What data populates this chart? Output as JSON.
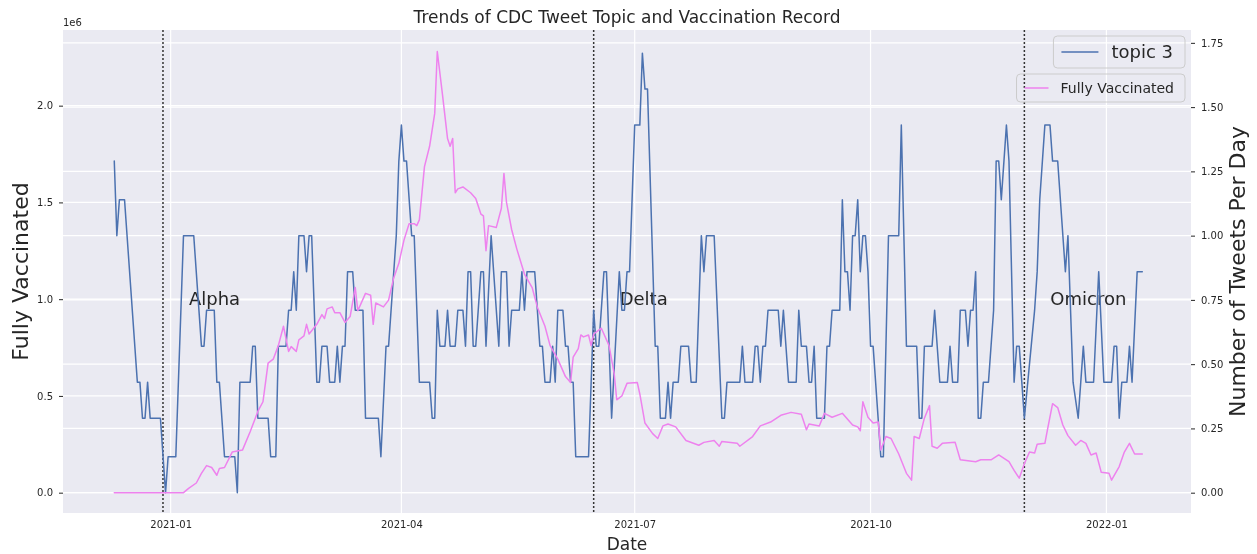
{
  "chart_data": {
    "type": "line",
    "title": "Trends of CDC Tweet Topic and Vaccination Record",
    "xlabel": "Date",
    "ylabel": "Fully Vaccinated",
    "y2label": "Number of Tweets Per Day",
    "xlim": [
      "2020-11-20",
      "2022-02-03"
    ],
    "xticks": [
      "2021-01",
      "2021-04",
      "2021-07",
      "2021-10",
      "2022-01"
    ],
    "ylim": [
      -0.105,
      2.391
    ],
    "yticks": [
      {
        "value": 0,
        "label": "0.0"
      },
      0.5,
      {
        "value": 1,
        "label": "1.0"
      },
      1.5,
      {
        "value": 2,
        "label": "2.0"
      }
    ],
    "y2lim": [
      -0.079,
      1.8
    ],
    "y2ticks": [
      {
        "value": 0,
        "label": "0.00"
      },
      {
        "value": 0.25,
        "label": "0.25"
      },
      {
        "value": 0.5,
        "label": "0.50"
      },
      {
        "value": 0.75,
        "label": "0.75"
      },
      {
        "value": 1,
        "label": "1.00"
      },
      {
        "value": 1.25,
        "label": "1.25"
      },
      {
        "value": 1.5,
        "label": "1.50"
      },
      {
        "value": 1.75,
        "label": "1.75"
      }
    ],
    "grid": true,
    "legend": "top right",
    "line_style": "solid",
    "marker": "none",
    "annotations": [
      "1e6"
    ],
    "ref_lines": [
      {
        "axis": "x",
        "value": "2020-12-29",
        "label": "Alpha",
        "color": "#333333",
        "line_style": "dotted"
      },
      {
        "axis": "x",
        "value": "2021-06-15",
        "label": "Delta",
        "color": "#333333",
        "line_style": "dotted"
      },
      {
        "axis": "x",
        "value": "2021-11-30",
        "label": "Omicron",
        "color": "#333333",
        "line_style": "dotted"
      }
    ],
    "series": [
      {
        "name": "topic 3",
        "color": "#4c72b0",
        "axis": "y2",
        "x": [
          "2020-12-10",
          "2020-12-11",
          "2020-12-12",
          "2020-12-14",
          "2020-12-19",
          "2020-12-20",
          "2020-12-21",
          "2020-12-22",
          "2020-12-23",
          "2020-12-24",
          "2020-12-28",
          "2020-12-30",
          "2020-12-31",
          "2021-01-03",
          "2021-01-06",
          "2021-01-10",
          "2021-01-13",
          "2021-01-14",
          "2021-01-15",
          "2021-01-18",
          "2021-01-19",
          "2021-01-20",
          "2021-01-22",
          "2021-01-26",
          "2021-01-27",
          "2021-01-28",
          "2021-02-01",
          "2021-02-02",
          "2021-02-03",
          "2021-02-04",
          "2021-02-08",
          "2021-02-09",
          "2021-02-11",
          "2021-02-12",
          "2021-02-15",
          "2021-02-16",
          "2021-02-17",
          "2021-02-18",
          "2021-02-19",
          "2021-02-20",
          "2021-02-22",
          "2021-02-23",
          "2021-02-24",
          "2021-02-25",
          "2021-02-27",
          "2021-02-28",
          "2021-03-01",
          "2021-03-03",
          "2021-03-04",
          "2021-03-06",
          "2021-03-07",
          "2021-03-08",
          "2021-03-09",
          "2021-03-10",
          "2021-03-11",
          "2021-03-13",
          "2021-03-14",
          "2021-03-17",
          "2021-03-18",
          "2021-03-23",
          "2021-03-24",
          "2021-03-26",
          "2021-03-27",
          "2021-03-30",
          "2021-03-31",
          "2021-04-01",
          "2021-04-02",
          "2021-04-03",
          "2021-04-05",
          "2021-04-06",
          "2021-04-08",
          "2021-04-12",
          "2021-04-13",
          "2021-04-14",
          "2021-04-15",
          "2021-04-16",
          "2021-04-18",
          "2021-04-19",
          "2021-04-20",
          "2021-04-22",
          "2021-04-23",
          "2021-04-25",
          "2021-04-26",
          "2021-04-27",
          "2021-04-28",
          "2021-04-29",
          "2021-04-30",
          "2021-05-02",
          "2021-05-03",
          "2021-05-04",
          "2021-05-06",
          "2021-05-09",
          "2021-05-10",
          "2021-05-12",
          "2021-05-13",
          "2021-05-14",
          "2021-05-17",
          "2021-05-18",
          "2021-05-19",
          "2021-05-20",
          "2021-05-23",
          "2021-05-25",
          "2021-05-26",
          "2021-05-27",
          "2021-05-29",
          "2021-05-30",
          "2021-05-31",
          "2021-06-01",
          "2021-06-03",
          "2021-06-04",
          "2021-06-05",
          "2021-06-06",
          "2021-06-07",
          "2021-06-08",
          "2021-06-13",
          "2021-06-15",
          "2021-06-16",
          "2021-06-17",
          "2021-06-19",
          "2021-06-20",
          "2021-06-22",
          "2021-06-25",
          "2021-06-26",
          "2021-06-27",
          "2021-06-28",
          "2021-06-29",
          "2021-07-01",
          "2021-07-03",
          "2021-07-04",
          "2021-07-05",
          "2021-07-06",
          "2021-07-09",
          "2021-07-10",
          "2021-07-11",
          "2021-07-13",
          "2021-07-14",
          "2021-07-15",
          "2021-07-16",
          "2021-07-18",
          "2021-07-19",
          "2021-07-22",
          "2021-07-23",
          "2021-07-25",
          "2021-07-27",
          "2021-07-28",
          "2021-07-29",
          "2021-08-01",
          "2021-08-04",
          "2021-08-05",
          "2021-08-06",
          "2021-08-11",
          "2021-08-12",
          "2021-08-13",
          "2021-08-16",
          "2021-08-17",
          "2021-08-18",
          "2021-08-19",
          "2021-08-20",
          "2021-08-21",
          "2021-08-22",
          "2021-08-26",
          "2021-08-27",
          "2021-08-28",
          "2021-08-30",
          "2021-09-02",
          "2021-09-03",
          "2021-09-04",
          "2021-09-06",
          "2021-09-07",
          "2021-09-08",
          "2021-09-09",
          "2021-09-10",
          "2021-09-13",
          "2021-09-14",
          "2021-09-15",
          "2021-09-16",
          "2021-09-19",
          "2021-09-20",
          "2021-09-21",
          "2021-09-22",
          "2021-09-23",
          "2021-09-24",
          "2021-09-25",
          "2021-09-26",
          "2021-09-27",
          "2021-09-28",
          "2021-09-29",
          "2021-09-30",
          "2021-10-01",
          "2021-10-02",
          "2021-10-05",
          "2021-10-06",
          "2021-10-08",
          "2021-10-12",
          "2021-10-13",
          "2021-10-15",
          "2021-10-19",
          "2021-10-20",
          "2021-10-21",
          "2021-10-22",
          "2021-10-25",
          "2021-10-26",
          "2021-10-28",
          "2021-10-31",
          "2021-11-01",
          "2021-11-02",
          "2021-11-04",
          "2021-11-05",
          "2021-11-07",
          "2021-11-08",
          "2021-11-09",
          "2021-11-10",
          "2021-11-11",
          "2021-11-12",
          "2021-11-13",
          "2021-11-14",
          "2021-11-16",
          "2021-11-18",
          "2021-11-19",
          "2021-11-20",
          "2021-11-21",
          "2021-11-23",
          "2021-11-24",
          "2021-11-26",
          "2021-11-27",
          "2021-11-28",
          "2021-11-30",
          "2021-12-04",
          "2021-12-05",
          "2021-12-06",
          "2021-12-08",
          "2021-12-10",
          "2021-12-11",
          "2021-12-13",
          "2021-12-16",
          "2021-12-17",
          "2021-12-19",
          "2021-12-21",
          "2021-12-23",
          "2021-12-24",
          "2021-12-27",
          "2021-12-29",
          "2021-12-31",
          "2022-01-03",
          "2022-01-04",
          "2022-01-05",
          "2022-01-06",
          "2022-01-07",
          "2022-01-09",
          "2022-01-10",
          "2022-01-11",
          "2022-01-13",
          "2022-01-15"
        ],
        "values": [
          1.29,
          1.0,
          1.14,
          1.14,
          0.43,
          0.43,
          0.29,
          0.29,
          0.43,
          0.29,
          0.29,
          0,
          0.14,
          0.14,
          1.0,
          1.0,
          0.57,
          0.57,
          0.71,
          0.71,
          0.43,
          0.43,
          0.14,
          0.14,
          0,
          0.43,
          0.43,
          0.57,
          0.57,
          0.29,
          0.29,
          0.14,
          0.14,
          0.57,
          0.57,
          0.71,
          0.71,
          0.86,
          0.71,
          1.0,
          1.0,
          0.86,
          1.0,
          1.0,
          0.43,
          0.43,
          0.57,
          0.57,
          0.43,
          0.43,
          0.57,
          0.43,
          0.57,
          0.57,
          0.86,
          0.86,
          0.71,
          0.71,
          0.29,
          0.29,
          0.14,
          0.57,
          0.57,
          1.0,
          1.29,
          1.43,
          1.29,
          1.29,
          1.0,
          1.0,
          0.43,
          0.43,
          0.29,
          0.29,
          0.71,
          0.57,
          0.57,
          0.71,
          0.57,
          0.57,
          0.71,
          0.71,
          0.57,
          0.86,
          0.86,
          0.57,
          0.57,
          0.86,
          0.86,
          0.57,
          1.0,
          0.57,
          0.86,
          0.86,
          0.57,
          0.71,
          0.71,
          0.86,
          0.71,
          0.86,
          0.86,
          0.57,
          0.57,
          0.43,
          0.43,
          0.57,
          0.43,
          0.71,
          0.71,
          0.57,
          0.57,
          0.43,
          0.43,
          0.14,
          0.14,
          0.71,
          0.57,
          0.57,
          0.86,
          0.86,
          0.29,
          0.86,
          0.71,
          0.71,
          0.86,
          0.86,
          1.43,
          1.43,
          1.71,
          1.57,
          1.57,
          0.57,
          0.57,
          0.29,
          0.29,
          0.43,
          0.29,
          0.43,
          0.43,
          0.57,
          0.57,
          0.43,
          0.43,
          1.0,
          0.86,
          1.0,
          1.0,
          0.29,
          0.29,
          0.43,
          0.43,
          0.57,
          0.43,
          0.43,
          0.57,
          0.57,
          0.43,
          0.57,
          0.57,
          0.71,
          0.71,
          0.57,
          0.71,
          0.43,
          0.43,
          0.71,
          0.57,
          0.57,
          0.43,
          0.43,
          0.57,
          0.29,
          0.29,
          0.57,
          0.57,
          0.71,
          0.71,
          1.14,
          0.86,
          0.86,
          0.71,
          1.0,
          1.0,
          1.14,
          0.86,
          1.0,
          1.0,
          0.86,
          0.57,
          0.57,
          0.14,
          0.14,
          1.0,
          1.0,
          1.43,
          0.57,
          0.57,
          0.29,
          0.29,
          0.57,
          0.57,
          0.71,
          0.43,
          0.43,
          0.57,
          0.43,
          0.43,
          0.71,
          0.71,
          0.57,
          0.71,
          0.71,
          0.86,
          0.29,
          0.29,
          0.43,
          0.43,
          0.71,
          1.29,
          1.29,
          1.14,
          1.43,
          1.29,
          0.43,
          0.57,
          0.57,
          0.29,
          0.71,
          0.86,
          1.14,
          1.43,
          1.43,
          1.29,
          1.29,
          0.86,
          1.0,
          0.43,
          0.29,
          0.57,
          0.43,
          0.43,
          0.86,
          0.43,
          0.43,
          0.57,
          0.57,
          0.29,
          0.43,
          0.43,
          0.57,
          0.43,
          0.86,
          0.86
        ]
      },
      {
        "name": "Fully Vaccinated",
        "color": "#ee82ee",
        "axis": "y",
        "x": [
          "2020-12-10",
          "2021-01-06",
          "2021-01-08",
          "2021-01-11",
          "2021-01-13",
          "2021-01-15",
          "2021-01-17",
          "2021-01-19",
          "2021-01-20",
          "2021-01-22",
          "2021-01-25",
          "2021-01-29",
          "2021-02-01",
          "2021-02-04",
          "2021-02-06",
          "2021-02-08",
          "2021-02-10",
          "2021-02-12",
          "2021-02-14",
          "2021-02-16",
          "2021-02-17",
          "2021-02-19",
          "2021-02-20",
          "2021-02-22",
          "2021-02-23",
          "2021-02-24",
          "2021-02-27",
          "2021-03-01",
          "2021-03-02",
          "2021-03-03",
          "2021-03-05",
          "2021-03-06",
          "2021-03-08",
          "2021-03-10",
          "2021-03-12",
          "2021-03-14",
          "2021-03-15",
          "2021-03-18",
          "2021-03-20",
          "2021-03-21",
          "2021-03-22",
          "2021-03-25",
          "2021-03-27",
          "2021-03-29",
          "2021-03-31",
          "2021-04-02",
          "2021-04-04",
          "2021-04-06",
          "2021-04-07",
          "2021-04-08",
          "2021-04-10",
          "2021-04-12",
          "2021-04-14",
          "2021-04-15",
          "2021-04-17",
          "2021-04-19",
          "2021-04-20",
          "2021-04-21",
          "2021-04-22",
          "2021-04-23",
          "2021-04-25",
          "2021-04-28",
          "2021-04-30",
          "2021-05-02",
          "2021-05-03",
          "2021-05-04",
          "2021-05-05",
          "2021-05-08",
          "2021-05-10",
          "2021-05-11",
          "2021-05-12",
          "2021-05-14",
          "2021-05-16",
          "2021-05-19",
          "2021-05-22",
          "2021-05-24",
          "2021-05-27",
          "2021-05-29",
          "2021-06-01",
          "2021-06-04",
          "2021-06-06",
          "2021-06-07",
          "2021-06-09",
          "2021-06-10",
          "2021-06-11",
          "2021-06-13",
          "2021-06-14",
          "2021-06-15",
          "2021-06-18",
          "2021-06-21",
          "2021-06-23",
          "2021-06-24",
          "2021-06-26",
          "2021-06-28",
          "2021-07-02",
          "2021-07-03",
          "2021-07-05",
          "2021-07-08",
          "2021-07-10",
          "2021-07-12",
          "2021-07-14",
          "2021-07-17",
          "2021-07-21",
          "2021-07-26",
          "2021-07-28",
          "2021-08-01",
          "2021-08-03",
          "2021-08-04",
          "2021-08-10",
          "2021-08-11",
          "2021-08-16",
          "2021-08-19",
          "2021-08-23",
          "2021-08-27",
          "2021-08-31",
          "2021-09-04",
          "2021-09-06",
          "2021-09-07",
          "2021-09-11",
          "2021-09-13",
          "2021-09-16",
          "2021-09-20",
          "2021-09-24",
          "2021-09-26",
          "2021-09-27",
          "2021-09-28",
          "2021-09-30",
          "2021-10-02",
          "2021-10-04",
          "2021-10-05",
          "2021-10-07",
          "2021-10-09",
          "2021-10-12",
          "2021-10-15",
          "2021-10-17",
          "2021-10-18",
          "2021-10-20",
          "2021-10-22",
          "2021-10-24",
          "2021-10-25",
          "2021-10-27",
          "2021-10-29",
          "2021-11-03",
          "2021-11-05",
          "2021-11-11",
          "2021-11-13",
          "2021-11-17",
          "2021-11-20",
          "2021-11-24",
          "2021-11-26",
          "2021-11-28",
          "2021-11-30",
          "2021-12-02",
          "2021-12-04",
          "2021-12-05",
          "2021-12-08",
          "2021-12-09",
          "2021-12-11",
          "2021-12-13",
          "2021-12-15",
          "2021-12-17",
          "2021-12-20",
          "2021-12-22",
          "2021-12-24",
          "2021-12-26",
          "2021-12-28",
          "2021-12-30",
          "2022-01-02",
          "2022-01-03",
          "2022-01-06",
          "2022-01-08",
          "2022-01-10",
          "2022-01-12",
          "2022-01-15"
        ],
        "values": [
          0,
          0,
          0.022,
          0.05,
          0.1,
          0.14,
          0.13,
          0.09,
          0.125,
          0.13,
          0.21,
          0.22,
          0.315,
          0.42,
          0.47,
          0.67,
          0.69,
          0.76,
          0.86,
          0.73,
          0.755,
          0.73,
          0.79,
          0.81,
          0.87,
          0.82,
          0.87,
          0.92,
          0.9,
          0.95,
          0.96,
          0.93,
          0.93,
          0.88,
          0.91,
          1.06,
          0.94,
          1.03,
          1.02,
          0.87,
          0.98,
          0.96,
          0.995,
          1.11,
          1.185,
          1.305,
          1.39,
          1.39,
          1.38,
          1.41,
          1.685,
          1.79,
          1.96,
          2.28,
          2.06,
          1.83,
          1.79,
          1.83,
          1.55,
          1.57,
          1.58,
          1.55,
          1.52,
          1.44,
          1.43,
          1.25,
          1.38,
          1.37,
          1.47,
          1.65,
          1.5,
          1.36,
          1.26,
          1.13,
          1.06,
          0.96,
          0.86,
          0.76,
          0.69,
          0.6,
          0.57,
          0.7,
          0.745,
          0.815,
          0.805,
          0.815,
          0.76,
          0.82,
          0.85,
          0.76,
          0.615,
          0.48,
          0.5,
          0.565,
          0.57,
          0.51,
          0.36,
          0.305,
          0.28,
          0.345,
          0.355,
          0.34,
          0.27,
          0.245,
          0.26,
          0.27,
          0.24,
          0.265,
          0.255,
          0.24,
          0.29,
          0.345,
          0.365,
          0.4,
          0.415,
          0.405,
          0.325,
          0.355,
          0.345,
          0.41,
          0.39,
          0.41,
          0.35,
          0.34,
          0.32,
          0.47,
          0.39,
          0.36,
          0.365,
          0.22,
          0.29,
          0.28,
          0.2,
          0.1,
          0.065,
          0.29,
          0.28,
          0.385,
          0.45,
          0.24,
          0.23,
          0.255,
          0.26,
          0.17,
          0.16,
          0.17,
          0.17,
          0.195,
          0.16,
          0.115,
          0.075,
          0.15,
          0.21,
          0.205,
          0.25,
          0.255,
          0.325,
          0.46,
          0.44,
          0.35,
          0.295,
          0.245,
          0.27,
          0.255,
          0.195,
          0.205,
          0.105,
          0.1,
          0.065,
          0.135,
          0.21,
          0.255,
          0.2,
          0.2
        ]
      }
    ]
  }
}
